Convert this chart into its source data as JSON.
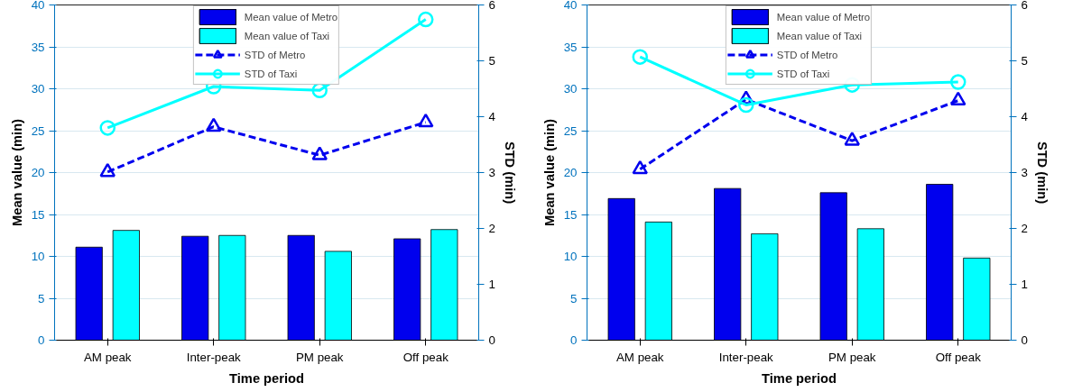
{
  "chart_data": [
    {
      "type": "bar",
      "categories": [
        "AM peak",
        "Inter-peak",
        "PM peak",
        "Off peak"
      ],
      "xlabel": "Time period",
      "ylabel": "Mean value (min)",
      "y2label": "STD (min)",
      "ylim": [
        0,
        40
      ],
      "yticks": [
        0,
        5,
        10,
        15,
        20,
        25,
        30,
        35,
        40
      ],
      "y2lim": [
        0,
        6
      ],
      "y2ticks": [
        0,
        1,
        2,
        3,
        4,
        5,
        6
      ],
      "grid": "y",
      "legend": "top",
      "series": [
        {
          "name": "Mean value of Metro",
          "color": "#0000ee",
          "values": [
            11.1,
            12.4,
            12.5,
            12.1
          ]
        },
        {
          "name": "Mean value of Taxi",
          "color": "#00ffff",
          "values": [
            13.1,
            12.5,
            10.6,
            13.2
          ]
        },
        {
          "name": "STD of Metro",
          "type": "line",
          "axis": "y2",
          "marker": "triangle",
          "line_style": "dashed",
          "color": "#0000ee",
          "values": [
            3.01,
            3.82,
            3.31,
            3.9
          ]
        },
        {
          "name": "STD of Taxi",
          "type": "line",
          "axis": "y2",
          "marker": "circle",
          "line_style": "solid",
          "color": "#00ffff",
          "values": [
            3.8,
            4.54,
            4.47,
            5.74
          ]
        }
      ]
    },
    {
      "type": "bar",
      "categories": [
        "AM peak",
        "Inter-peak",
        "PM peak",
        "Off peak"
      ],
      "xlabel": "Time period",
      "ylabel": "Mean value (min)",
      "y2label": "STD (min)",
      "ylim": [
        0,
        40
      ],
      "yticks": [
        0,
        5,
        10,
        15,
        20,
        25,
        30,
        35,
        40
      ],
      "y2lim": [
        0,
        6
      ],
      "y2ticks": [
        0,
        1,
        2,
        3,
        4,
        5,
        6
      ],
      "grid": "y",
      "legend": "top",
      "series": [
        {
          "name": "Mean value of Metro",
          "color": "#0000ee",
          "values": [
            16.9,
            18.1,
            17.6,
            18.6
          ]
        },
        {
          "name": "Mean value of Taxi",
          "color": "#00ffff",
          "values": [
            14.1,
            12.7,
            13.3,
            9.8
          ]
        },
        {
          "name": "STD of Metro",
          "type": "line",
          "axis": "y2",
          "marker": "triangle",
          "line_style": "dashed",
          "color": "#0000ee",
          "values": [
            3.06,
            4.31,
            3.57,
            4.29
          ]
        },
        {
          "name": "STD of Taxi",
          "type": "line",
          "axis": "y2",
          "marker": "circle",
          "line_style": "solid",
          "color": "#00ffff",
          "values": [
            5.07,
            4.21,
            4.57,
            4.62
          ]
        }
      ]
    }
  ]
}
